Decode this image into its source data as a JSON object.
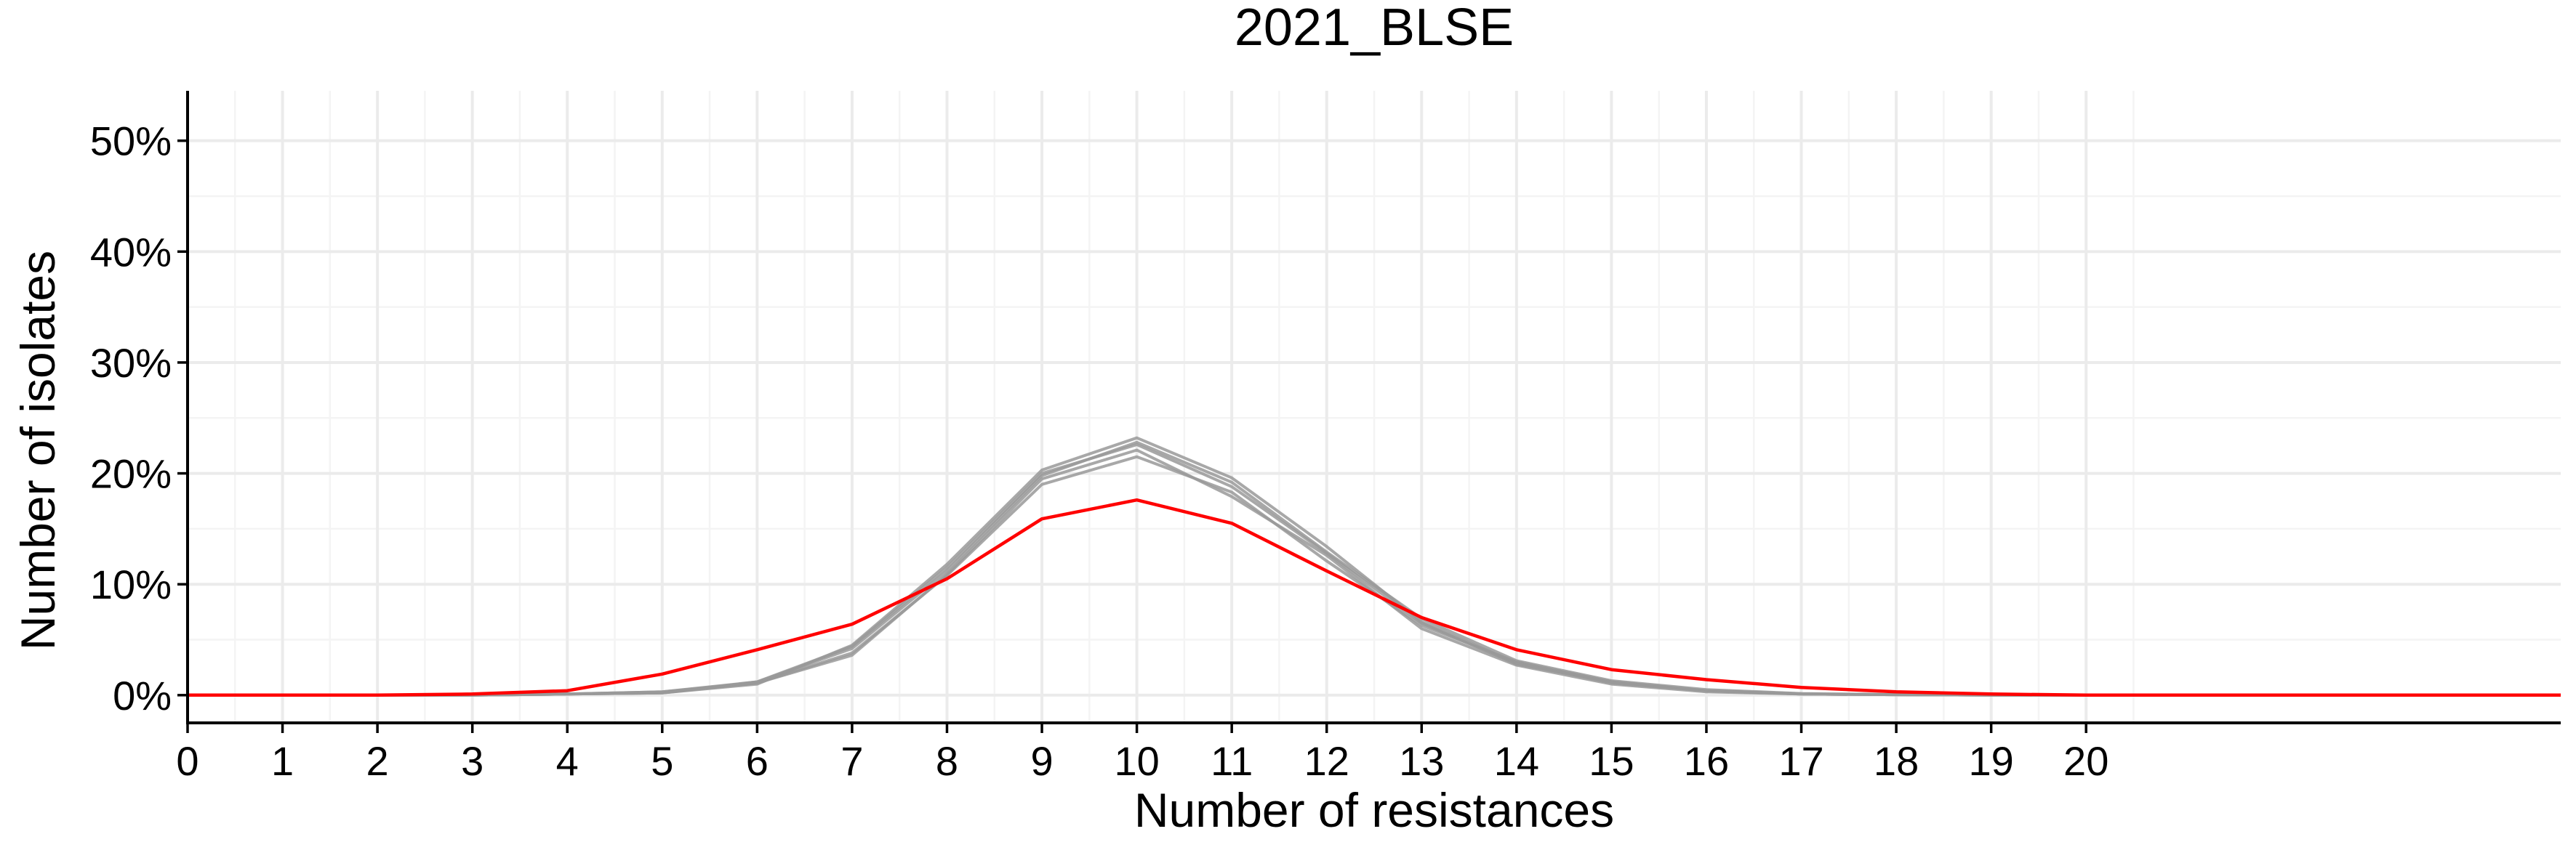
{
  "chart_data": {
    "type": "line",
    "title": "2021_BLSE",
    "xlabel": "Number of resistances",
    "ylabel": "Number of isolates",
    "xlim": [
      0,
      25
    ],
    "ylim": [
      -2.5,
      54.5
    ],
    "x_ticks": [
      0,
      1,
      2,
      3,
      4,
      5,
      6,
      7,
      8,
      9,
      10,
      11,
      12,
      13,
      14,
      15,
      16,
      17,
      18,
      19,
      20
    ],
    "x_tick_labels": [
      "0",
      "1",
      "2",
      "3",
      "4",
      "5",
      "6",
      "7",
      "8",
      "9",
      "10",
      "11",
      "12",
      "13",
      "14",
      "15",
      "16",
      "17",
      "18",
      "19",
      "20"
    ],
    "y_ticks": [
      0,
      10,
      20,
      30,
      40,
      50
    ],
    "y_tick_labels": [
      "0%",
      "10%",
      "20%",
      "30%",
      "40%",
      "50%"
    ],
    "grid": true,
    "legend": "none",
    "highlight_color": "#ff0000",
    "background_color": "#999999",
    "x": [
      0,
      1,
      2,
      3,
      4,
      5,
      6,
      7,
      8,
      9,
      10,
      11,
      12,
      13,
      14,
      15,
      16,
      17,
      18,
      19,
      20,
      25
    ],
    "series": [
      {
        "color": "#ff0000",
        "values": [
          0,
          0,
          0,
          0.1,
          0.4,
          1.9,
          4.1,
          6.4,
          10.5,
          15.9,
          17.6,
          15.5,
          11.2,
          7.0,
          4.1,
          2.3,
          1.4,
          0.7,
          0.3,
          0.1,
          0.0,
          0.0
        ]
      },
      {
        "color": "#999999",
        "values": [
          0,
          0,
          0,
          0,
          0.1,
          0.2,
          1.1,
          3.8,
          10.8,
          19.0,
          21.5,
          18.3,
          12.1,
          6.3,
          3.0,
          1.2,
          0.4,
          0.1,
          0.05,
          0,
          0,
          0
        ]
      },
      {
        "color": "#999999",
        "values": [
          0,
          0,
          0,
          0,
          0.1,
          0.3,
          1.2,
          4.2,
          11.2,
          19.8,
          22.8,
          19.2,
          12.9,
          6.9,
          3.1,
          1.3,
          0.5,
          0.15,
          0.05,
          0,
          0,
          0
        ]
      },
      {
        "color": "#999999",
        "values": [
          0,
          0,
          0,
          0,
          0.1,
          0.2,
          1.0,
          4.5,
          11.8,
          20.3,
          23.2,
          19.6,
          13.4,
          6.6,
          2.9,
          1.1,
          0.4,
          0.1,
          0.05,
          0,
          0,
          0
        ]
      },
      {
        "color": "#999999",
        "values": [
          0,
          0,
          0,
          0,
          0.1,
          0.3,
          1.1,
          3.6,
          10.9,
          19.5,
          22.1,
          17.9,
          12.6,
          6.0,
          2.7,
          1.0,
          0.3,
          0.1,
          0.05,
          0,
          0,
          0
        ]
      },
      {
        "color": "#999999",
        "values": [
          0,
          0,
          0,
          0,
          0.1,
          0.2,
          1.2,
          4.4,
          11.5,
          20.0,
          22.6,
          18.8,
          12.8,
          6.5,
          2.8,
          1.2,
          0.4,
          0.1,
          0.05,
          0,
          0,
          0
        ]
      }
    ]
  }
}
